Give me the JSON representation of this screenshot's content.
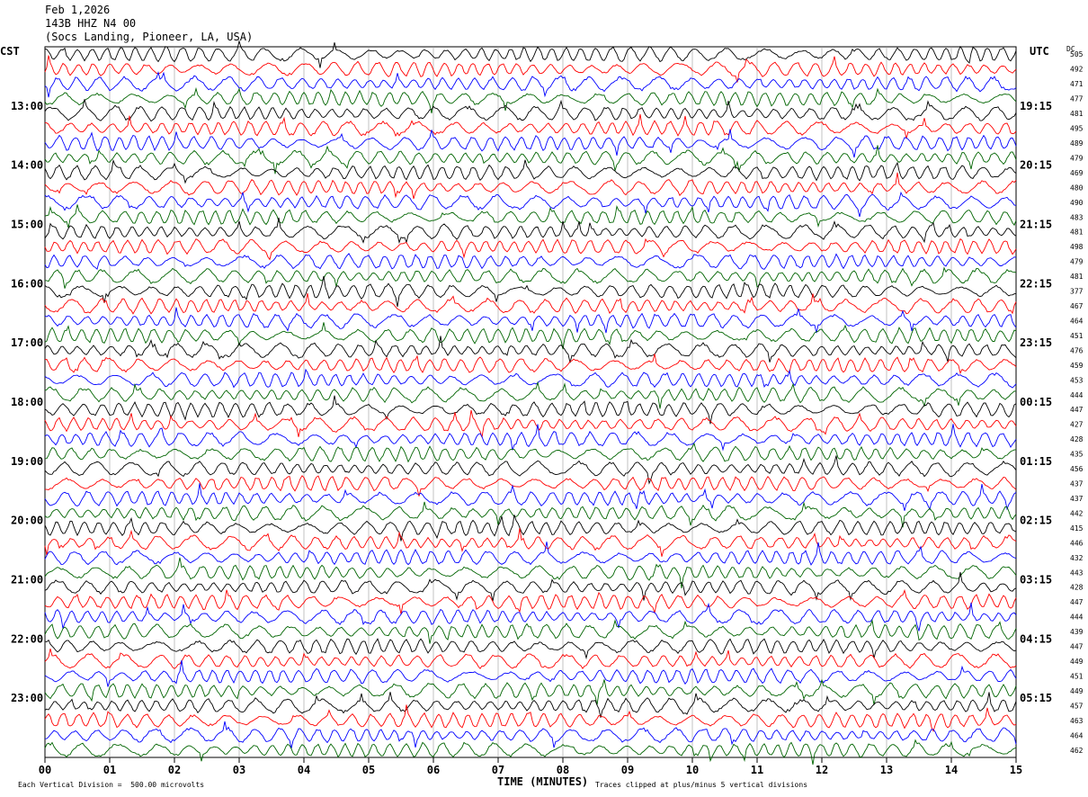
{
  "header": {
    "date": "Feb 1,2026",
    "station": "143B HHZ N4 00",
    "location": "(Socs Landing, Pioneer, LA, USA)"
  },
  "left_timezone": "CST",
  "right_timezone": "UTC",
  "dc_header": "DC",
  "chart_data": {
    "type": "line",
    "xlabel": "TIME (MINUTES)",
    "x_ticks": [
      "00",
      "01",
      "02",
      "03",
      "04",
      "05",
      "06",
      "07",
      "08",
      "09",
      "10",
      "11",
      "12",
      "13",
      "14",
      "15"
    ],
    "xlim": [
      0,
      15
    ],
    "left_hour_labels": [
      "13:00",
      "14:00",
      "15:00",
      "16:00",
      "17:00",
      "18:00",
      "19:00",
      "20:00",
      "21:00",
      "22:00",
      "23:00"
    ],
    "right_hour_labels": [
      "19:15",
      "20:15",
      "21:15",
      "22:15",
      "23:15",
      "00:15",
      "01:15",
      "02:15",
      "03:15",
      "04:15",
      "05:15"
    ],
    "trace_colors": [
      "#000000",
      "#ff0000",
      "#0000ff",
      "#006400"
    ],
    "dc_offsets": [
      "505",
      "492",
      "471",
      "477",
      "481",
      "495",
      "489",
      "479",
      "469",
      "480",
      "490",
      "483",
      "481",
      "498",
      "479",
      "481",
      "377",
      "467",
      "464",
      "451",
      "476",
      "459",
      "453",
      "444",
      "447",
      "427",
      "428",
      "435",
      "456",
      "437",
      "437",
      "442",
      "415",
      "446",
      "432",
      "443",
      "428",
      "447",
      "444",
      "439",
      "447",
      "449",
      "451",
      "449",
      "457",
      "463",
      "464",
      "462"
    ],
    "footer_left": "Each Vertical Division =  500.00 microvolts",
    "footer_right": "Traces clipped at plus/minus 5 vertical divisions"
  }
}
